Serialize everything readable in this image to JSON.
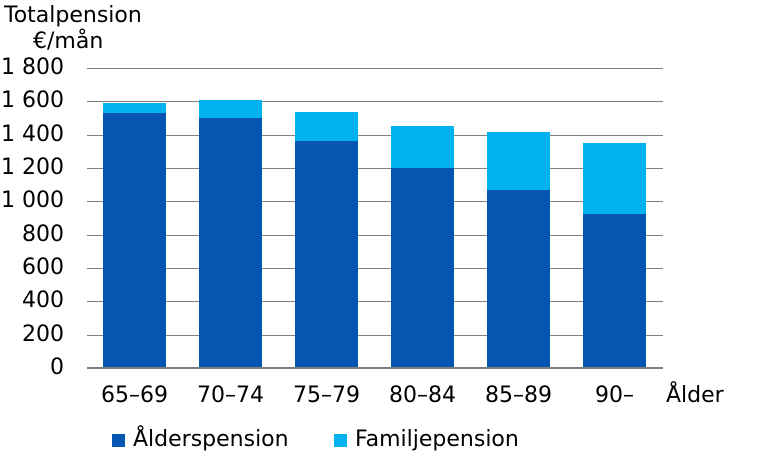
{
  "header": {
    "line1": "Totalpension",
    "line2": "€/mån"
  },
  "chart_data": {
    "type": "bar",
    "stacked": true,
    "title": "Totalpension €/mån",
    "xlabel": "Ålder",
    "ylabel": "€/mån",
    "categories": [
      "65–69",
      "70–74",
      "75–79",
      "80–84",
      "85–89",
      "90–"
    ],
    "series": [
      {
        "name": "Ålderspension",
        "color": "#0556b0",
        "values": [
          1530,
          1500,
          1360,
          1200,
          1070,
          925
        ]
      },
      {
        "name": "Familjepension",
        "color": "#00b3f0",
        "values": [
          60,
          110,
          175,
          255,
          345,
          425
        ]
      }
    ],
    "totals": [
      1590,
      1610,
      1535,
      1455,
      1415,
      1350
    ],
    "ylim": [
      0,
      1800
    ],
    "ytick_step": 200,
    "ytick_labels": [
      "1 800",
      "1 600",
      "1 400",
      "1 200",
      "1 000",
      "800",
      "600",
      "400",
      "200",
      "0"
    ],
    "grid": "horizontal",
    "grid_color": "#808080",
    "text_color": "#000000",
    "legend_position": "bottom"
  }
}
